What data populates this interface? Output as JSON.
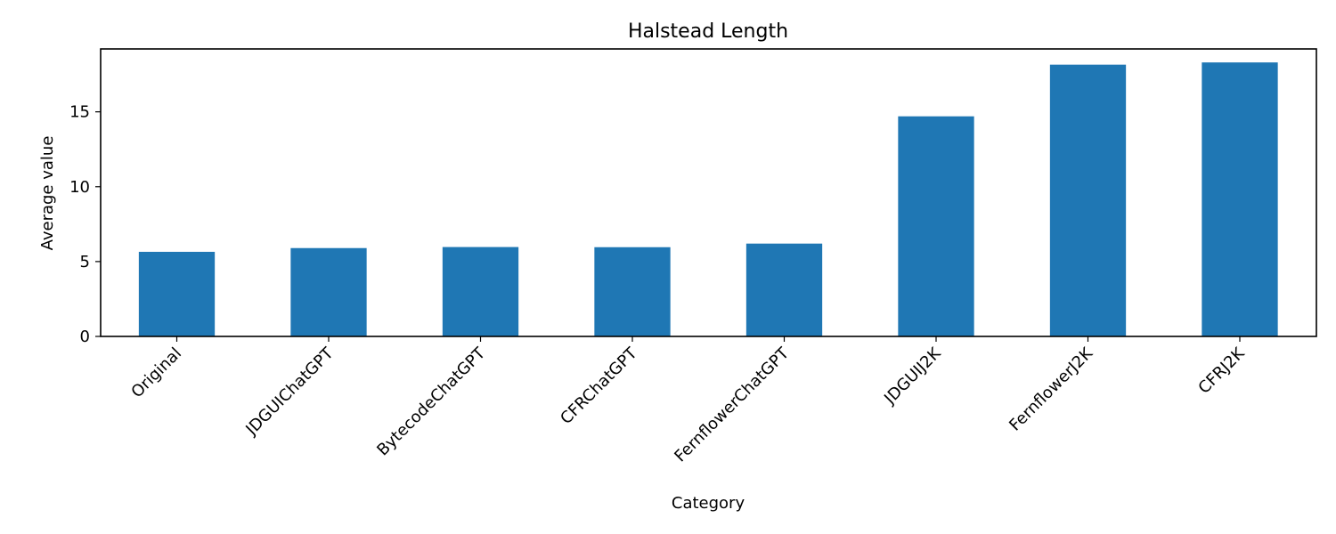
{
  "chart_data": {
    "type": "bar",
    "title": "Halstead Length",
    "xlabel": "Category",
    "ylabel": "Average value",
    "categories": [
      "Original",
      "JDGUIChatGPT",
      "BytecodeChatGPT",
      "CFRChatGPT",
      "FernflowerChatGPT",
      "JDGUIJ2K",
      "FernflowerJ2K",
      "CFRJ2K"
    ],
    "values": [
      5.65,
      5.9,
      5.97,
      5.96,
      6.2,
      14.7,
      18.15,
      18.3
    ],
    "ylim": [
      0,
      19.2
    ],
    "yticks": [
      0,
      5,
      10,
      15
    ],
    "ytick_labels": [
      "0",
      "5",
      "10",
      "15"
    ],
    "bar_color": "#1f77b4",
    "grid": false,
    "legend": false
  }
}
